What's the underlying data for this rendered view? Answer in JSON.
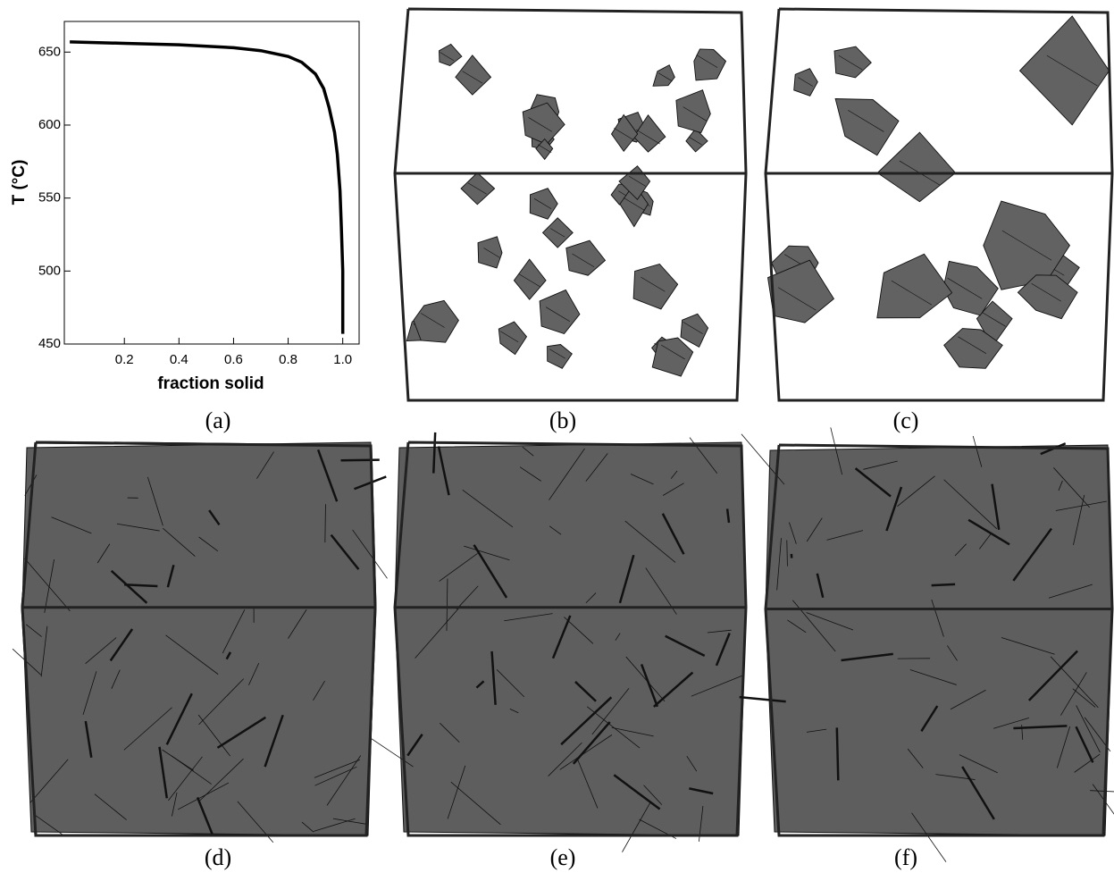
{
  "chart_data": {
    "type": "line",
    "x_label": "fraction solid",
    "y_label": "T (°C)",
    "color": "#000000",
    "x": [
      0,
      0.2,
      0.4,
      0.6,
      0.7,
      0.8,
      0.85,
      0.9,
      0.93,
      0.95,
      0.97,
      0.98,
      0.99,
      0.995,
      1.0,
      1.0
    ],
    "values": [
      657,
      656,
      655,
      653,
      651,
      647,
      643,
      635,
      625,
      612,
      595,
      580,
      555,
      530,
      500,
      457
    ],
    "xlim": [
      -0.02,
      1.06
    ],
    "ylim": [
      450,
      671
    ],
    "xticks": [
      0.2,
      0.4,
      0.6,
      0.8,
      {
        "value": 1,
        "label": "1.0"
      }
    ],
    "yticks": [
      450,
      500,
      550,
      600,
      650
    ]
  },
  "panels": [
    "(a)",
    "(b)",
    "(c)",
    "(d)",
    "(e)",
    "(f)"
  ]
}
